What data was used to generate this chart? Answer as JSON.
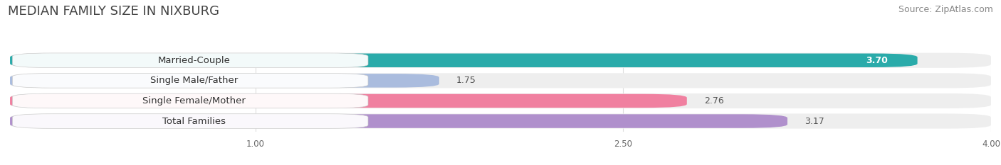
{
  "title": "MEDIAN FAMILY SIZE IN NIXBURG",
  "source": "Source: ZipAtlas.com",
  "categories": [
    "Married-Couple",
    "Single Male/Father",
    "Single Female/Mother",
    "Total Families"
  ],
  "values": [
    3.7,
    1.75,
    2.76,
    3.17
  ],
  "bar_colors": [
    "#2aabaa",
    "#aabcde",
    "#f080a0",
    "#b090cc"
  ],
  "track_color": "#eeeeee",
  "xlim": [
    0,
    4.0
  ],
  "xticks": [
    1.0,
    2.5,
    4.0
  ],
  "xtick_labels": [
    "1.00",
    "2.50",
    "4.00"
  ],
  "title_fontsize": 13,
  "source_fontsize": 9,
  "label_fontsize": 9.5,
  "value_fontsize": 9,
  "bar_height": 0.68,
  "bar_gap": 1.0,
  "background_color": "#ffffff",
  "grid_color": "#dddddd",
  "value_label_color_inside": "#ffffff",
  "value_label_color_outside": "#555555"
}
